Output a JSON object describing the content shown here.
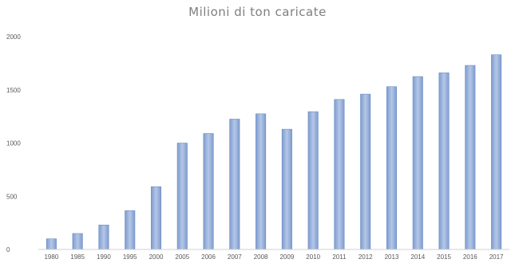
{
  "chart_data": {
    "type": "bar",
    "title": "Milioni di ton caricate",
    "xlabel": "",
    "ylabel": "",
    "categories": [
      "1980",
      "1985",
      "1990",
      "1995",
      "2000",
      "2005",
      "2006",
      "2007",
      "2008",
      "2009",
      "2010",
      "2011",
      "2012",
      "2013",
      "2014",
      "2015",
      "2016",
      "2017"
    ],
    "values": [
      100,
      150,
      230,
      365,
      590,
      1000,
      1090,
      1225,
      1275,
      1130,
      1295,
      1410,
      1460,
      1530,
      1625,
      1660,
      1730,
      1830
    ],
    "ylim": [
      0,
      2000
    ],
    "yticks": [
      0,
      500,
      1000,
      1500,
      2000
    ],
    "grid": false,
    "bar_color": "#8eaadb"
  }
}
